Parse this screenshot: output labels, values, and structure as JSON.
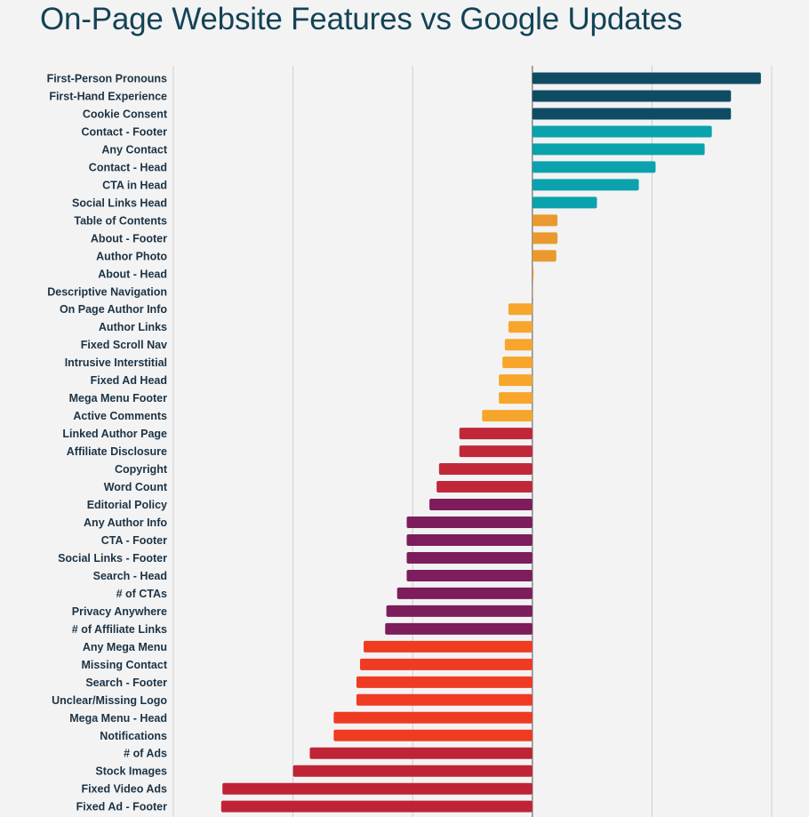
{
  "chart_data": {
    "type": "bar",
    "orientation": "horizontal",
    "title": "On-Page Website Features vs Google Updates",
    "xlabel": "",
    "ylabel": "",
    "xlim": [
      -3,
      2
    ],
    "grid": true,
    "gridlines": [
      -3,
      -2,
      -1,
      0,
      1,
      2
    ],
    "categories": [
      "First-Person Pronouns",
      "First-Hand Experience",
      "Cookie Consent",
      "Contact - Footer",
      "Any Contact",
      "Contact - Head",
      "CTA in Head",
      "Social Links Head",
      "Table of Contents",
      "About - Footer",
      "Author Photo",
      "About - Head",
      "Descriptive Navigation",
      "On Page Author Info",
      "Author Links",
      "Fixed Scroll Nav",
      "Intrusive Interstitial",
      "Fixed Ad Head",
      "Mega Menu Footer",
      "Active Comments",
      "Linked Author Page",
      "Affiliate Disclosure",
      "Copyright",
      "Word Count",
      "Editorial Policy",
      "Any Author Info",
      "CTA - Footer",
      "Social Links - Footer",
      "Search - Head",
      "# of CTAs",
      "Privacy Anywhere",
      "# of Affiliate Links",
      "Any Mega Menu",
      "Missing Contact",
      "Search - Footer",
      "Unclear/Missing Logo",
      "Mega Menu - Head",
      "Notifications",
      "# of Ads",
      "Stock Images",
      "Fixed Video Ads",
      "Fixed Ad - Footer"
    ],
    "values": [
      1.91,
      1.66,
      1.66,
      1.5,
      1.44,
      1.03,
      0.89,
      0.54,
      0.21,
      0.21,
      0.2,
      0.01,
      0,
      -0.2,
      -0.2,
      -0.23,
      -0.25,
      -0.28,
      -0.28,
      -0.42,
      -0.61,
      -0.61,
      -0.78,
      -0.8,
      -0.86,
      -1.05,
      -1.05,
      -1.05,
      -1.05,
      -1.13,
      -1.22,
      -1.23,
      -1.41,
      -1.44,
      -1.47,
      -1.47,
      -1.66,
      -1.66,
      -1.86,
      -2.0,
      -2.59,
      -2.6
    ],
    "color_groups": [
      0,
      0,
      0,
      1,
      1,
      1,
      1,
      1,
      2,
      2,
      2,
      2,
      2,
      3,
      3,
      3,
      3,
      3,
      3,
      3,
      4,
      4,
      4,
      4,
      5,
      5,
      5,
      5,
      5,
      5,
      5,
      5,
      6,
      6,
      6,
      6,
      6,
      6,
      7,
      7,
      7,
      7
    ],
    "palette": [
      "#0f4c64",
      "#0aa3ad",
      "#e9992e",
      "#f7a62b",
      "#c0283a",
      "#7d1d5b",
      "#ee3b22",
      "#bf2436"
    ]
  }
}
